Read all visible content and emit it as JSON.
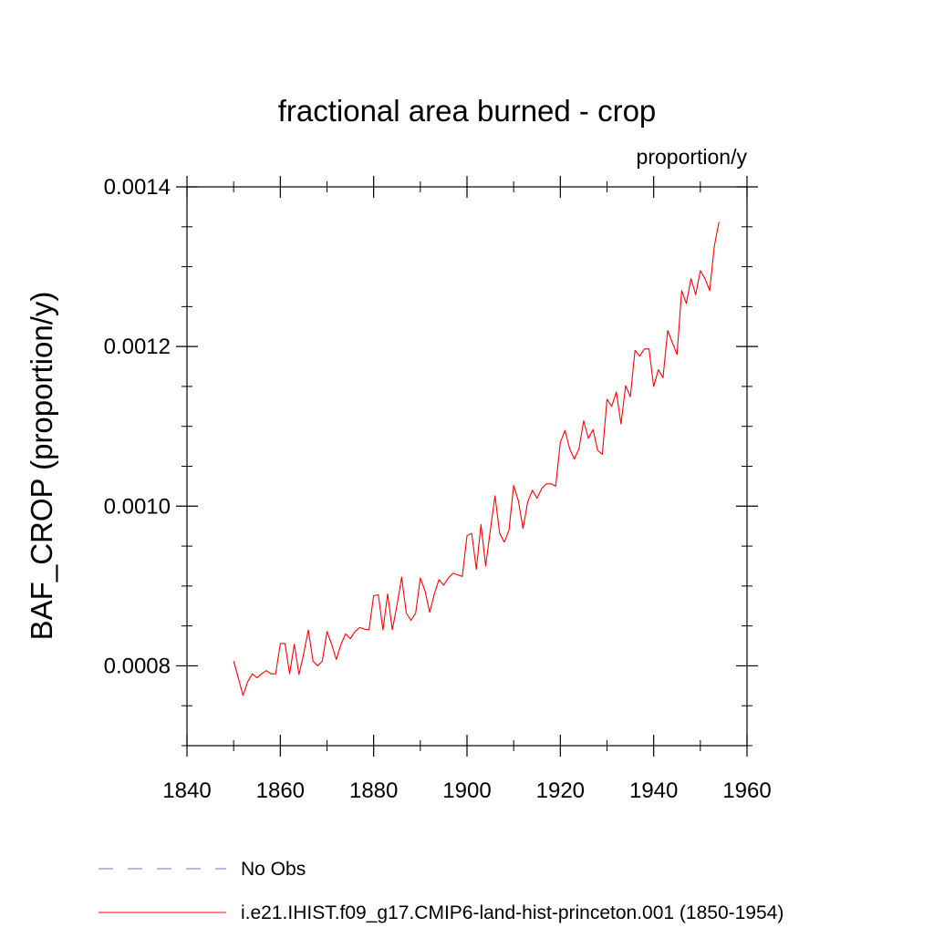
{
  "chart_data": {
    "type": "line",
    "title": "fractional area burned - crop",
    "units_label": "proportion/y",
    "xlabel": "",
    "ylabel": "BAF_CROP  (proportion/y)",
    "xlim": [
      1840,
      1960
    ],
    "ylim": [
      0.0007,
      0.0014
    ],
    "x_ticks": [
      1840,
      1860,
      1880,
      1900,
      1920,
      1940,
      1960
    ],
    "x_tick_labels": [
      "1840",
      "1860",
      "1880",
      "1900",
      "1920",
      "1940",
      "1960"
    ],
    "y_ticks": [
      0.0008,
      0.001,
      0.0012,
      0.0014
    ],
    "y_tick_labels": [
      "0.0008",
      "0.0010",
      "0.0012",
      "0.0014"
    ],
    "y_minor_step": 5e-05,
    "x_minor_step": 10,
    "grid": false,
    "legend_position": "bottom",
    "series": [
      {
        "name": "i.e21.IHIST.f09_g17.CMIP6-land-hist-princeton.001 (1850-1954)",
        "color": "#ff0000",
        "dash": "solid",
        "x": [
          1850,
          1851,
          1852,
          1853,
          1854,
          1855,
          1856,
          1857,
          1858,
          1859,
          1860,
          1861,
          1862,
          1863,
          1864,
          1865,
          1866,
          1867,
          1868,
          1869,
          1870,
          1871,
          1872,
          1873,
          1874,
          1875,
          1876,
          1877,
          1878,
          1879,
          1880,
          1881,
          1882,
          1883,
          1884,
          1885,
          1886,
          1887,
          1888,
          1889,
          1890,
          1891,
          1892,
          1893,
          1894,
          1895,
          1896,
          1897,
          1898,
          1899,
          1900,
          1901,
          1902,
          1903,
          1904,
          1905,
          1906,
          1907,
          1908,
          1909,
          1910,
          1911,
          1912,
          1913,
          1914,
          1915,
          1916,
          1917,
          1918,
          1919,
          1920,
          1921,
          1922,
          1923,
          1924,
          1925,
          1926,
          1927,
          1928,
          1929,
          1930,
          1931,
          1932,
          1933,
          1934,
          1935,
          1936,
          1937,
          1938,
          1939,
          1940,
          1941,
          1942,
          1943,
          1944,
          1945,
          1946,
          1947,
          1948,
          1949,
          1950,
          1951,
          1952,
          1953,
          1954
        ],
        "y": [
          0.000806,
          0.000785,
          0.000763,
          0.00078,
          0.00079,
          0.000785,
          0.00079,
          0.000794,
          0.00079,
          0.00079,
          0.000828,
          0.000828,
          0.00079,
          0.000827,
          0.000789,
          0.000815,
          0.000845,
          0.000806,
          0.0008,
          0.000806,
          0.000843,
          0.000827,
          0.000808,
          0.000827,
          0.00084,
          0.000834,
          0.000843,
          0.000848,
          0.000846,
          0.000845,
          0.000888,
          0.000889,
          0.000845,
          0.00089,
          0.000845,
          0.000876,
          0.000911,
          0.000866,
          0.000857,
          0.000866,
          0.00091,
          0.000894,
          0.000867,
          0.00089,
          0.000908,
          0.000901,
          0.00091,
          0.000916,
          0.000914,
          0.000912,
          0.000963,
          0.000966,
          0.000921,
          0.000977,
          0.000925,
          0.00097,
          0.001013,
          0.000966,
          0.000955,
          0.00097,
          0.001026,
          0.001007,
          0.000972,
          0.001005,
          0.00102,
          0.00101,
          0.001022,
          0.001028,
          0.001028,
          0.001025,
          0.00108,
          0.001095,
          0.001072,
          0.001059,
          0.001072,
          0.001107,
          0.001085,
          0.001096,
          0.00107,
          0.001065,
          0.001134,
          0.001125,
          0.001143,
          0.001103,
          0.001151,
          0.001137,
          0.001195,
          0.001188,
          0.001197,
          0.001197,
          0.00115,
          0.001171,
          0.001161,
          0.00122,
          0.001205,
          0.00119,
          0.00127,
          0.001254,
          0.001285,
          0.001265,
          0.001295,
          0.001285,
          0.00127,
          0.001326,
          0.001356
        ]
      }
    ],
    "legend": [
      {
        "label": "No Obs",
        "color": "#7a6fc9",
        "dash": "dashed"
      },
      {
        "label": "i.e21.IHIST.f09_g17.CMIP6-land-hist-princeton.001 (1850-1954)",
        "color": "#ff0000",
        "dash": "solid"
      }
    ]
  }
}
